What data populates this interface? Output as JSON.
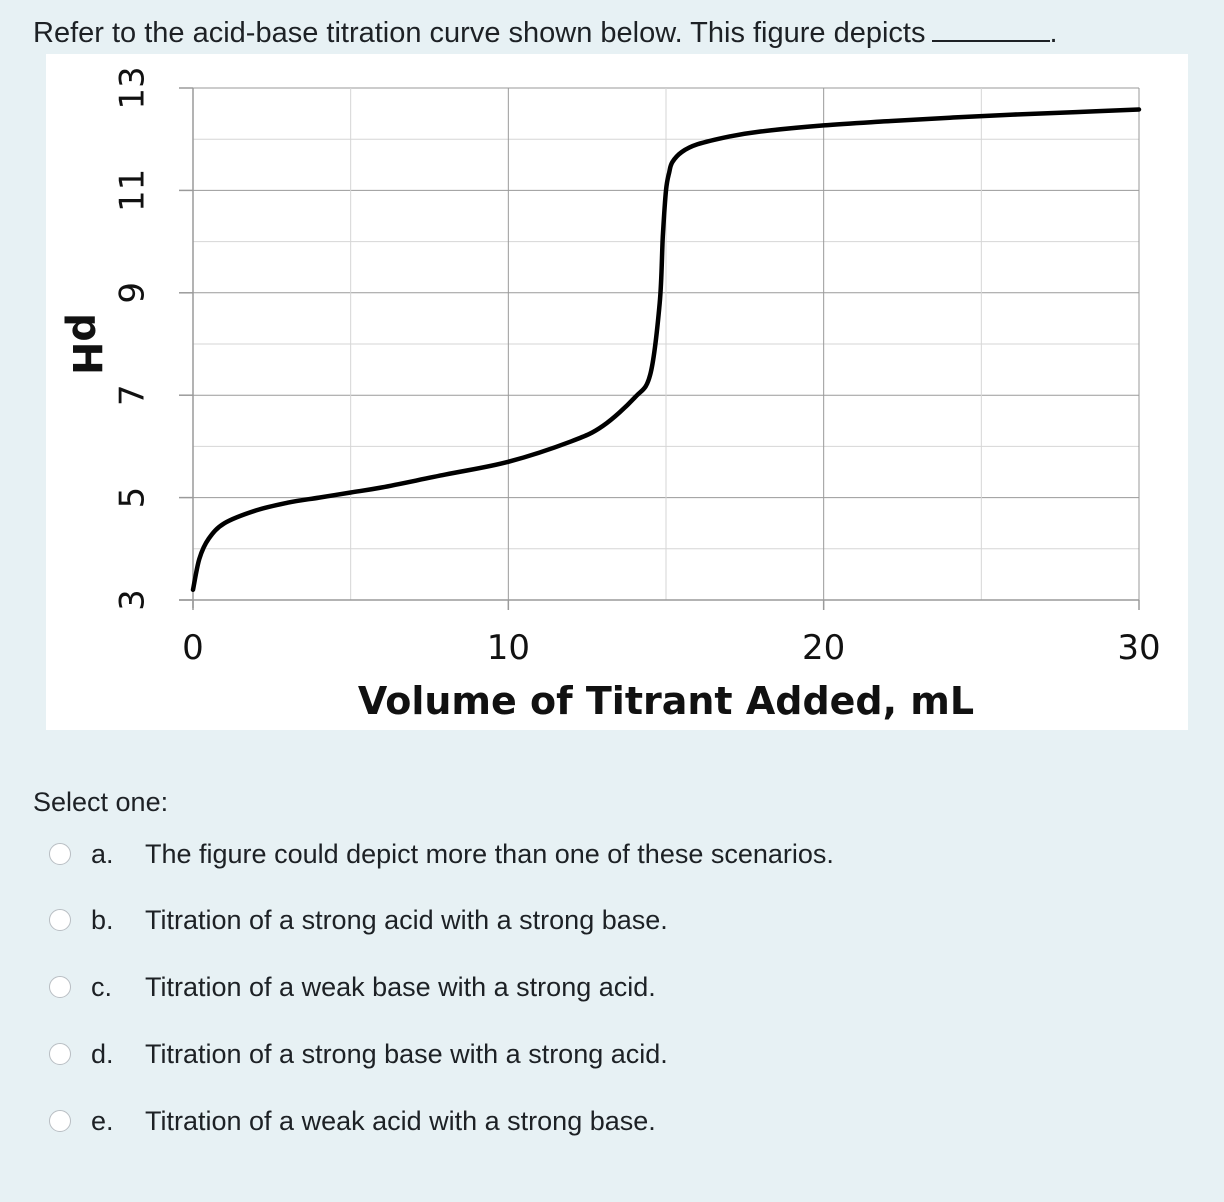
{
  "question": {
    "text": "Refer to the acid-base titration curve shown below. This figure depicts",
    "suffix": "."
  },
  "chart_data": {
    "type": "line",
    "title": "",
    "xlabel": "Volume of Titrant Added, mL",
    "ylabel": "pH",
    "xlim": [
      0,
      30
    ],
    "ylim": [
      3,
      13
    ],
    "x_ticks": [
      "0",
      "10",
      "20",
      "30"
    ],
    "y_ticks": [
      "13",
      "11",
      "9",
      "7",
      "5",
      "3"
    ],
    "grid": true,
    "series": [
      {
        "x": [
          0,
          0.2,
          0.5,
          1,
          2,
          3,
          4,
          5,
          6,
          8,
          10,
          12,
          13,
          14,
          14.5,
          14.8,
          14.9,
          15.0,
          15.1,
          15.2,
          15.5,
          16,
          17,
          18,
          20,
          22,
          24,
          26,
          28,
          30
        ],
        "y": [
          3.2,
          3.8,
          4.2,
          4.5,
          4.75,
          4.9,
          5.0,
          5.1,
          5.2,
          5.45,
          5.7,
          6.1,
          6.4,
          6.95,
          7.4,
          8.8,
          10.1,
          11.0,
          11.35,
          11.55,
          11.75,
          11.9,
          12.05,
          12.15,
          12.27,
          12.35,
          12.42,
          12.48,
          12.53,
          12.58
        ]
      }
    ]
  },
  "select_label": "Select one:",
  "options": [
    {
      "letter": "a.",
      "text": "The figure could depict more than one of these scenarios."
    },
    {
      "letter": "b.",
      "text": "Titration of a strong acid with a strong base."
    },
    {
      "letter": "c.",
      "text": "Titration of a weak base with a strong acid."
    },
    {
      "letter": "d.",
      "text": "Titration of a strong base with a strong acid."
    },
    {
      "letter": "e.",
      "text": "Titration of a weak acid with a strong base."
    }
  ]
}
